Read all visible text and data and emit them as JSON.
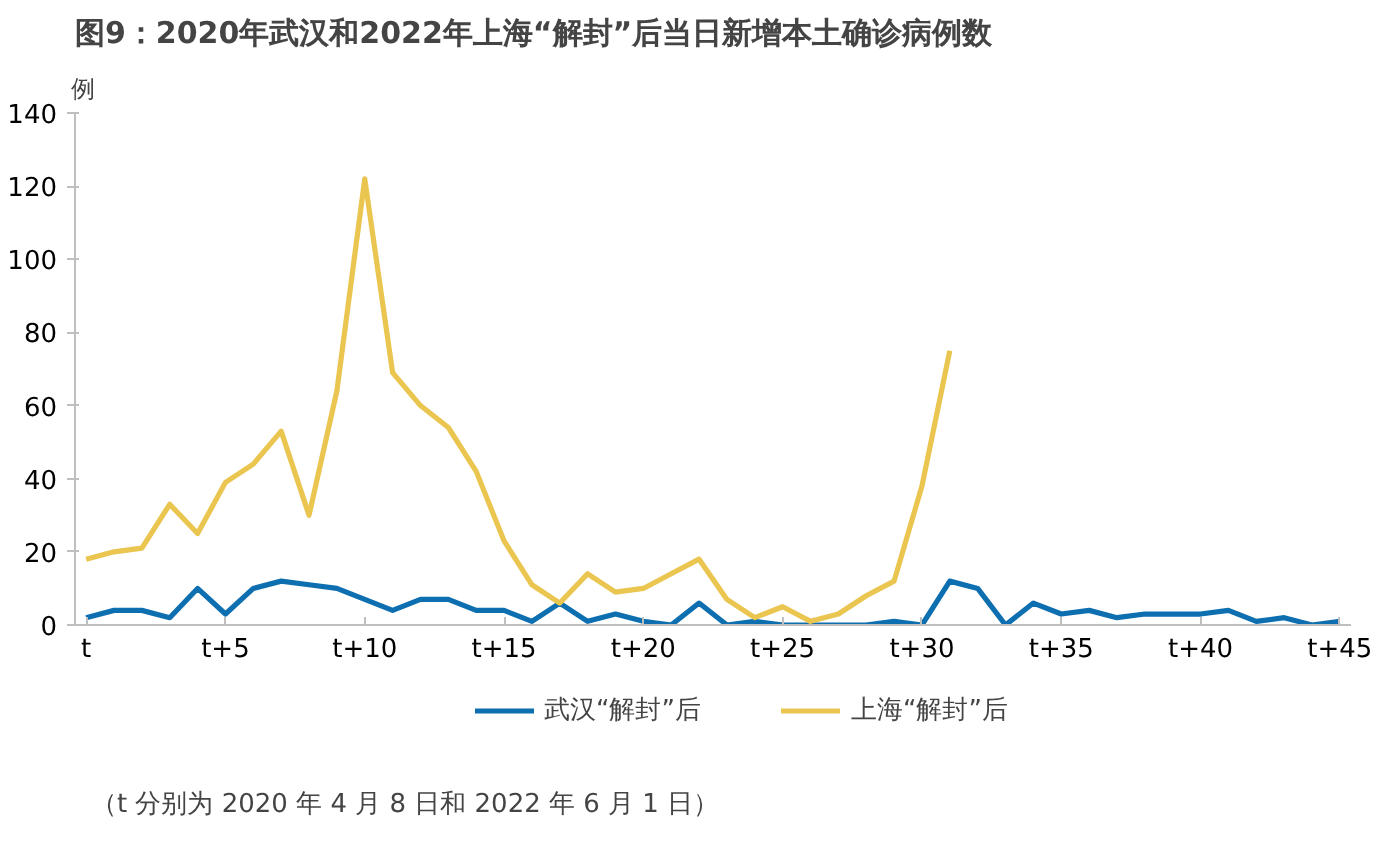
{
  "chart_data": {
    "type": "line",
    "title": "图9：2020年武汉和2022年上海“解封”后当日新增本土确诊病例数",
    "ylabel": "例",
    "annotations": [
      "（t 分别为 2020 年 4 月 8 日和 2022 年 6 月 1 日）"
    ],
    "categories": [
      "t",
      null,
      null,
      null,
      null,
      "t+5",
      null,
      null,
      null,
      null,
      "t+10",
      null,
      null,
      null,
      null,
      "t+15",
      null,
      null,
      null,
      null,
      "t+20",
      null,
      null,
      null,
      null,
      "t+25",
      null,
      null,
      null,
      null,
      "t+30",
      null,
      null,
      null,
      null,
      "t+35",
      null,
      null,
      null,
      null,
      "t+40",
      null,
      null,
      null,
      null,
      "t+45"
    ],
    "series": [
      {
        "name": "武汉“解封”后",
        "color": "#0e6fb0",
        "values": [
          2,
          4,
          4,
          2,
          10,
          3,
          10,
          12,
          11,
          10,
          7,
          4,
          7,
          7,
          4,
          4,
          1,
          6,
          1,
          3,
          1,
          0,
          6,
          0,
          1,
          0,
          0,
          0,
          0,
          1,
          0,
          12,
          10,
          0,
          6,
          3,
          4,
          2,
          3,
          3,
          3,
          4,
          1,
          2,
          0,
          1
        ]
      },
      {
        "name": "上海“解封”后",
        "color": "#eac54f",
        "values": [
          18,
          20,
          21,
          33,
          25,
          39,
          44,
          53,
          30,
          64,
          122,
          69,
          60,
          54,
          42,
          23,
          11,
          6,
          14,
          9,
          10,
          14,
          18,
          7,
          2,
          5,
          1,
          3,
          8,
          12,
          38,
          75,
          null,
          null,
          null,
          null,
          null,
          null,
          null,
          null,
          null,
          null,
          null,
          null,
          null,
          null
        ]
      }
    ],
    "ylim": [
      0,
      140
    ],
    "yticks": [
      0,
      20,
      40,
      60,
      80,
      100,
      120,
      140
    ],
    "legend": "bottom"
  }
}
